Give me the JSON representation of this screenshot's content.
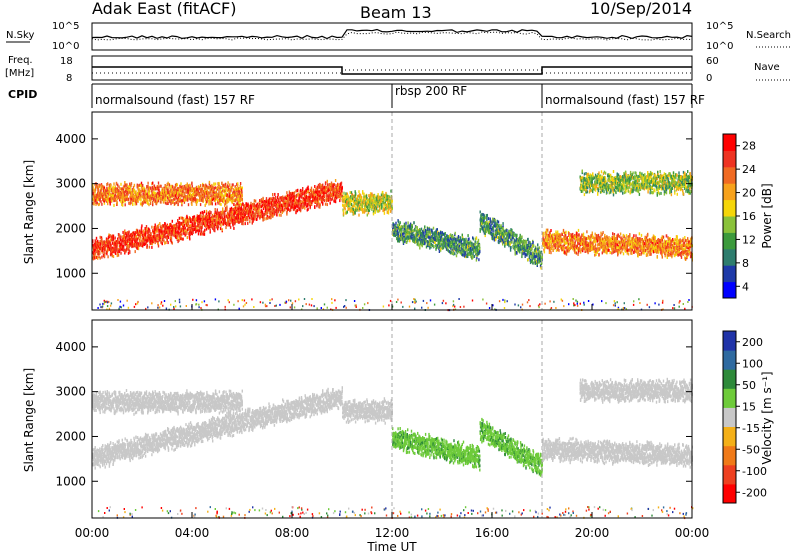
{
  "header": {
    "station": "Adak East (fitACF)",
    "beam": "Beam 13",
    "date": "10/Sep/2014"
  },
  "status_panels": {
    "nsky_label": "N.Sky",
    "nsky_ticks": [
      "10^5",
      "10^0"
    ],
    "nsearch_label": "N.Search",
    "nsearch_ticks": [
      "10^5",
      "10^0"
    ],
    "freq_label": "Freq.",
    "freq_unit": "[MHz]",
    "freq_ticks": [
      "18",
      "8"
    ],
    "nave_label": "Nave",
    "nave_ticks": [
      "60",
      "0"
    ],
    "cpid_label": "CPID",
    "cpid_segments": [
      {
        "label": "normalsound (fast) 157 RF",
        "start": 0,
        "end": 12
      },
      {
        "label": "rbsp 200 RF",
        "start": 12,
        "end": 18
      },
      {
        "label": "normalsound (fast) 157 RF",
        "start": 18,
        "end": 24
      }
    ]
  },
  "x_axis": {
    "label": "Time UT",
    "ticks": [
      "00:00",
      "04:00",
      "08:00",
      "12:00",
      "16:00",
      "20:00",
      "00:00"
    ]
  },
  "power_colorbar": {
    "label": "Power [dB]",
    "ticks": [
      "28",
      "24",
      "20",
      "16",
      "12",
      "8",
      "4"
    ],
    "colors": [
      "#0000ff",
      "#1e3aa8",
      "#2e7d6e",
      "#3c9a3c",
      "#8ac23a",
      "#f5d60a",
      "#f7a21c",
      "#f06a22",
      "#ee3322",
      "#ff0000"
    ]
  },
  "velocity_colorbar": {
    "label": "Velocity [m s⁻¹]",
    "ticks": [
      "200",
      "100",
      "50",
      "15",
      "-15",
      "-50",
      "-100",
      "-200"
    ],
    "colors": [
      "#2033a8",
      "#2f6aa0",
      "#2e8a3a",
      "#6ecb3a",
      "#c8c8c8",
      "#f4b018",
      "#f07a18",
      "#ee4020",
      "#ff0000"
    ]
  },
  "chart_data": [
    {
      "type": "heatmap",
      "title": "",
      "xlabel": "Time UT",
      "ylabel": "Slant Range [km]",
      "xlim": [
        0,
        24
      ],
      "ylim": [
        180,
        4600
      ],
      "yticks": [
        1000,
        2000,
        3000,
        4000
      ],
      "value": "Power [dB]",
      "bands": [
        {
          "start": 0.0,
          "end": 10.0,
          "range_center": 1550,
          "range_end": 2900,
          "value": 26
        },
        {
          "start": 0.0,
          "end": 6.0,
          "range_center": 2800,
          "value": 22
        },
        {
          "start": 10.0,
          "end": 12.0,
          "range_center": 2600,
          "value": 16
        },
        {
          "start": 12.0,
          "end": 15.5,
          "range_center": 2000,
          "range_end": 1550,
          "value": 10
        },
        {
          "start": 15.5,
          "end": 18.0,
          "range_center": 2200,
          "range_end": 1350,
          "value": 10
        },
        {
          "start": 18.0,
          "end": 24.0,
          "range_center": 1750,
          "range_end": 1600,
          "value": 22
        },
        {
          "start": 19.5,
          "end": 24.0,
          "range_center": 3050,
          "value": 14
        }
      ]
    },
    {
      "type": "heatmap",
      "title": "",
      "xlabel": "Time UT",
      "ylabel": "Slant Range [km]",
      "xlim": [
        0,
        24
      ],
      "ylim": [
        180,
        4600
      ],
      "yticks": [
        1000,
        2000,
        3000,
        4000
      ],
      "value": "Velocity [m s⁻¹]",
      "bands": [
        {
          "start": 0.0,
          "end": 10.0,
          "range_center": 1550,
          "range_end": 2900,
          "value": 0
        },
        {
          "start": 0.0,
          "end": 6.0,
          "range_center": 2800,
          "value": 0
        },
        {
          "start": 10.0,
          "end": 12.0,
          "range_center": 2600,
          "value": 0
        },
        {
          "start": 12.0,
          "end": 15.5,
          "range_center": 2000,
          "range_end": 1550,
          "value": 40
        },
        {
          "start": 15.5,
          "end": 18.0,
          "range_center": 2200,
          "range_end": 1350,
          "value": 40
        },
        {
          "start": 18.0,
          "end": 24.0,
          "range_center": 1750,
          "range_end": 1600,
          "value": 0
        },
        {
          "start": 19.5,
          "end": 24.0,
          "range_center": 3050,
          "value": 0
        }
      ]
    }
  ]
}
